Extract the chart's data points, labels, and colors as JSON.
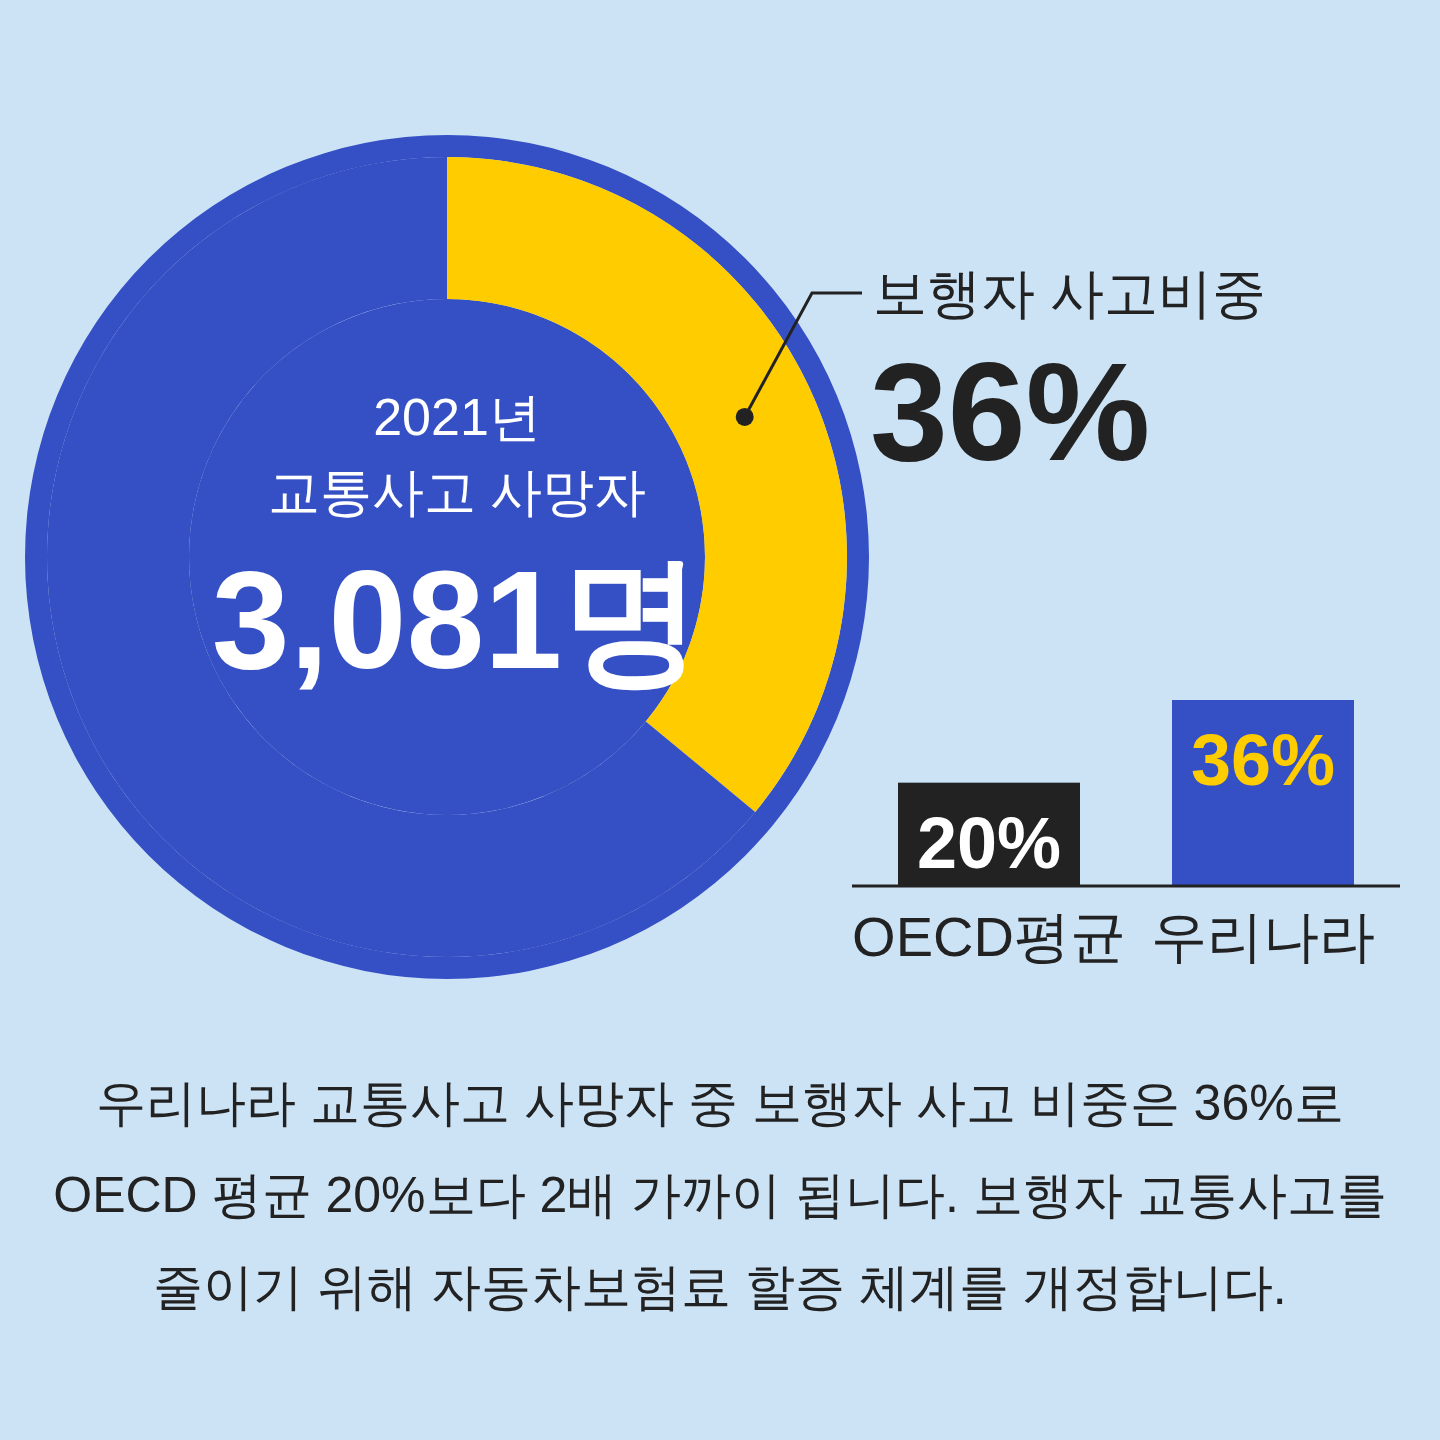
{
  "chart_data": [
    {
      "type": "donut",
      "categories": [
        "보행자 사고비중",
        null
      ],
      "values": [
        36,
        64
      ],
      "colors": [
        "#ffcc00",
        "#3550c4"
      ],
      "value_labels": [
        "36%",
        null
      ],
      "annotations": [
        "2021년",
        "교통사고 사망자",
        "3,081명",
        "우리나라 교통사고 사망자 중 보행자 사고 비중은 36%로",
        "OECD 평균 20%보다 2배 가까이 됩니다. 보행자 교통사고를",
        "줄이기 위해 자동차보험료 할증 체계를 개정합니다."
      ]
    },
    {
      "type": "bar",
      "categories": [
        "OECD평균",
        "우리나라"
      ],
      "values": [
        20,
        36
      ],
      "colors": [
        "#222222",
        "#3550c4"
      ],
      "value_labels": [
        "20%",
        "36%"
      ]
    }
  ]
}
